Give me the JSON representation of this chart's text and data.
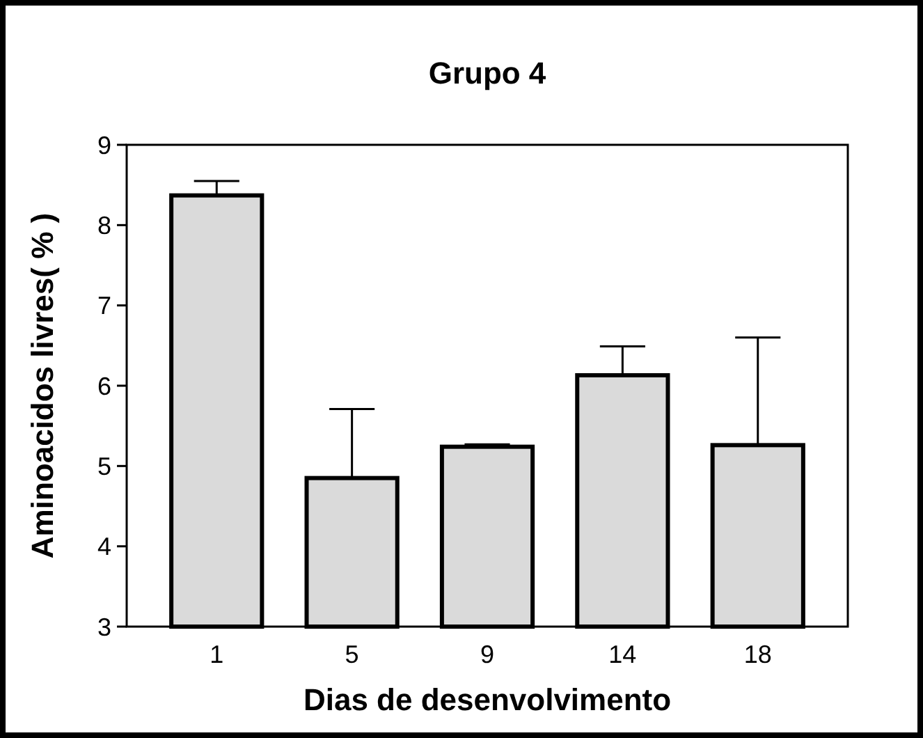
{
  "chart_data": {
    "type": "bar",
    "title": "Grupo 4",
    "xlabel": "Dias de desenvolvimento",
    "ylabel": "Aminoacidos livres( % )",
    "categories": [
      "1",
      "5",
      "9",
      "14",
      "18"
    ],
    "values": [
      8.37,
      4.85,
      5.24,
      6.13,
      5.26
    ],
    "errors": [
      [
        8.37,
        8.55
      ],
      [
        4.85,
        5.71
      ],
      [
        5.24,
        5.27
      ],
      [
        6.13,
        6.49
      ],
      [
        5.26,
        6.6
      ]
    ],
    "color": "#dadada",
    "ylim": [
      3,
      9
    ],
    "yticks": [
      3,
      4,
      5,
      6,
      7,
      8,
      9
    ],
    "grid": false
  }
}
